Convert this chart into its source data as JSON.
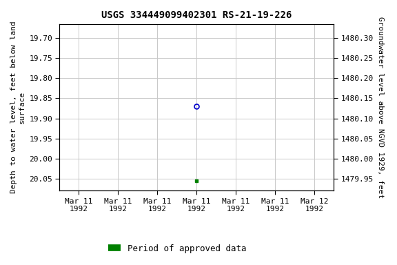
{
  "title": "USGS 334449099402301 RS-21-19-226",
  "ylabel_left": "Depth to water level, feet below land\nsurface",
  "ylabel_right": "Groundwater level above NGVD 1929, feet",
  "ylim_left": [
    20.08,
    19.665
  ],
  "ylim_right": [
    1479.92,
    1480.335
  ],
  "yticks_left": [
    19.7,
    19.75,
    19.8,
    19.85,
    19.9,
    19.95,
    20.0,
    20.05
  ],
  "yticks_right": [
    1480.3,
    1480.25,
    1480.2,
    1480.15,
    1480.1,
    1480.05,
    1480.0,
    1479.95
  ],
  "point_blue_value": 19.87,
  "point_green_value": 20.055,
  "point_blue_color": "#0000cc",
  "point_green_color": "#008000",
  "legend_label": "Period of approved data",
  "legend_color": "#008000",
  "grid_color": "#c8c8c8",
  "background_color": "#ffffff",
  "title_fontsize": 10,
  "axis_label_fontsize": 8,
  "tick_fontsize": 8,
  "legend_fontsize": 9
}
